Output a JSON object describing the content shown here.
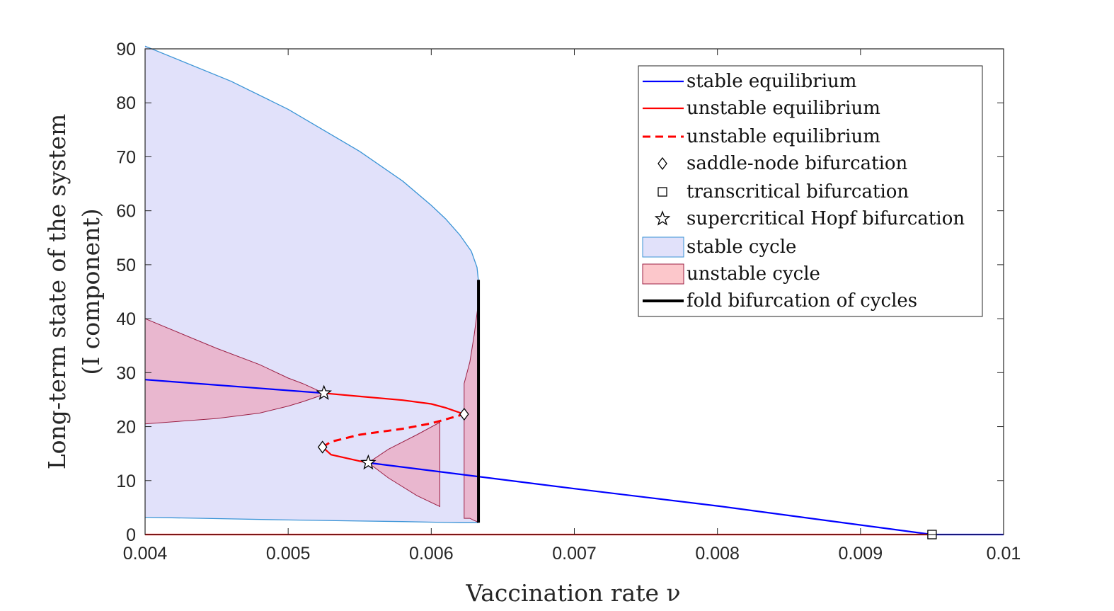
{
  "chart_data": {
    "type": "line",
    "title": "",
    "xlabel": "Vaccination rate ν",
    "ylabel_line1": "Long-term state of the system",
    "ylabel_line2": "(I component)",
    "xlim": [
      0.004,
      0.01
    ],
    "ylim": [
      0,
      90
    ],
    "xticks": [
      "0.004",
      "0.005",
      "0.006",
      "0.007",
      "0.008",
      "0.009",
      "0.01"
    ],
    "yticks": [
      "0",
      "10",
      "20",
      "30",
      "40",
      "50",
      "60",
      "70",
      "80",
      "90"
    ],
    "grid": false,
    "legend_position": "top-right",
    "colors": {
      "stable": "#0000ff",
      "unstable": "#ff0000",
      "stable_cycle_fill": "#e1e1fa",
      "stable_cycle_edge": "#3a94d6",
      "unstable_cycle_fill": "#e9b7cf",
      "unstable_cycle_edge": "#9b2045",
      "fold": "#000000"
    },
    "stable_cycle": {
      "x": [
        0.004,
        0.0046,
        0.005,
        0.0055,
        0.0058,
        0.006,
        0.0061,
        0.0062,
        0.00628,
        0.00632,
        0.00633
      ],
      "upper": [
        90.5,
        84,
        78.8,
        71,
        65.5,
        61,
        58.5,
        55.5,
        52.5,
        49.5,
        47
      ],
      "lower": [
        3.2,
        2.9,
        2.7,
        2.5,
        2.4,
        2.3,
        2.25,
        2.2,
        2.2,
        2.2,
        2.2
      ]
    },
    "unstable_cycles": [
      {
        "x": [
          0.004,
          0.0045,
          0.0048,
          0.005,
          0.0051,
          0.0052,
          0.00525
        ],
        "upper": [
          40,
          34.5,
          31.5,
          29,
          28,
          26.8,
          26
        ],
        "lower": [
          20.5,
          21.5,
          22.5,
          23.8,
          24.6,
          25.5,
          26
        ]
      },
      {
        "x": [
          0.00556,
          0.0057,
          0.0059,
          0.00606
        ],
        "upper": [
          13.3,
          15.8,
          18.5,
          20.8
        ],
        "lower": [
          13.3,
          10.5,
          7.2,
          5.2
        ]
      },
      {
        "x": [
          0.00623,
          0.00627,
          0.0063,
          0.00633
        ],
        "upper": [
          28,
          32,
          37,
          43
        ],
        "lower": [
          3,
          3,
          2.6,
          2.3
        ]
      }
    ],
    "series": [
      {
        "name": "stable equilibrium",
        "style": "stable",
        "x": [
          0.004,
          0.00525
        ],
        "y": [
          28.7,
          26.2
        ]
      },
      {
        "name": "unstable equilibrium",
        "style": "unstable",
        "x": [
          0.00525,
          0.0055,
          0.0058,
          0.006,
          0.0061,
          0.00623
        ],
        "y": [
          26.2,
          25.6,
          24.9,
          24.2,
          23.5,
          22.3
        ]
      },
      {
        "name": "unstable equilibrium",
        "style": "unstable_dashed",
        "x": [
          0.00524,
          0.0053,
          0.0055,
          0.0058,
          0.006,
          0.00623
        ],
        "y": [
          16.2,
          17.2,
          18.5,
          19.6,
          20.6,
          22.3
        ]
      },
      {
        "name": "unstable equilibrium",
        "style": "unstable",
        "x": [
          0.00524,
          0.0053,
          0.0055,
          0.00556
        ],
        "y": [
          16.2,
          14.8,
          13.6,
          13.3
        ]
      },
      {
        "name": "stable equilibrium",
        "style": "stable",
        "x": [
          0.00556,
          0.007,
          0.008,
          0.0095
        ],
        "y": [
          13.3,
          8.5,
          5.3,
          0
        ]
      },
      {
        "name": "stable equilibrium",
        "style": "stable",
        "x": [
          0.0095,
          0.01
        ],
        "y": [
          0,
          0
        ]
      },
      {
        "name": "unstable equilibrium",
        "style": "unstable",
        "x": [
          0.004,
          0.0095
        ],
        "y": [
          0,
          0
        ]
      }
    ],
    "fold_cycles": {
      "x": 0.00633,
      "y": [
        2.2,
        47.2
      ]
    },
    "markers": [
      {
        "type": "saddle-node",
        "x": 0.00623,
        "y": 22.3
      },
      {
        "type": "saddle-node",
        "x": 0.00524,
        "y": 16.2
      },
      {
        "type": "hopf",
        "x": 0.00525,
        "y": 26.2
      },
      {
        "type": "hopf",
        "x": 0.00556,
        "y": 13.3
      },
      {
        "type": "transcritical",
        "x": 0.0095,
        "y": 0
      }
    ],
    "legend": [
      {
        "label": "stable equilibrium",
        "kind": "line-stable"
      },
      {
        "label": "unstable equilibrium",
        "kind": "line-unstable"
      },
      {
        "label": "unstable equilibrium",
        "kind": "line-unstable-dashed"
      },
      {
        "label": "saddle-node bifurcation",
        "kind": "diamond"
      },
      {
        "label": "transcritical bifurcation",
        "kind": "square"
      },
      {
        "label": "supercritical Hopf bifurcation",
        "kind": "star"
      },
      {
        "label": "stable cycle",
        "kind": "patch-stable"
      },
      {
        "label": "unstable cycle",
        "kind": "patch-unstable"
      },
      {
        "label": "fold bifurcation of cycles",
        "kind": "line-fold"
      }
    ]
  }
}
